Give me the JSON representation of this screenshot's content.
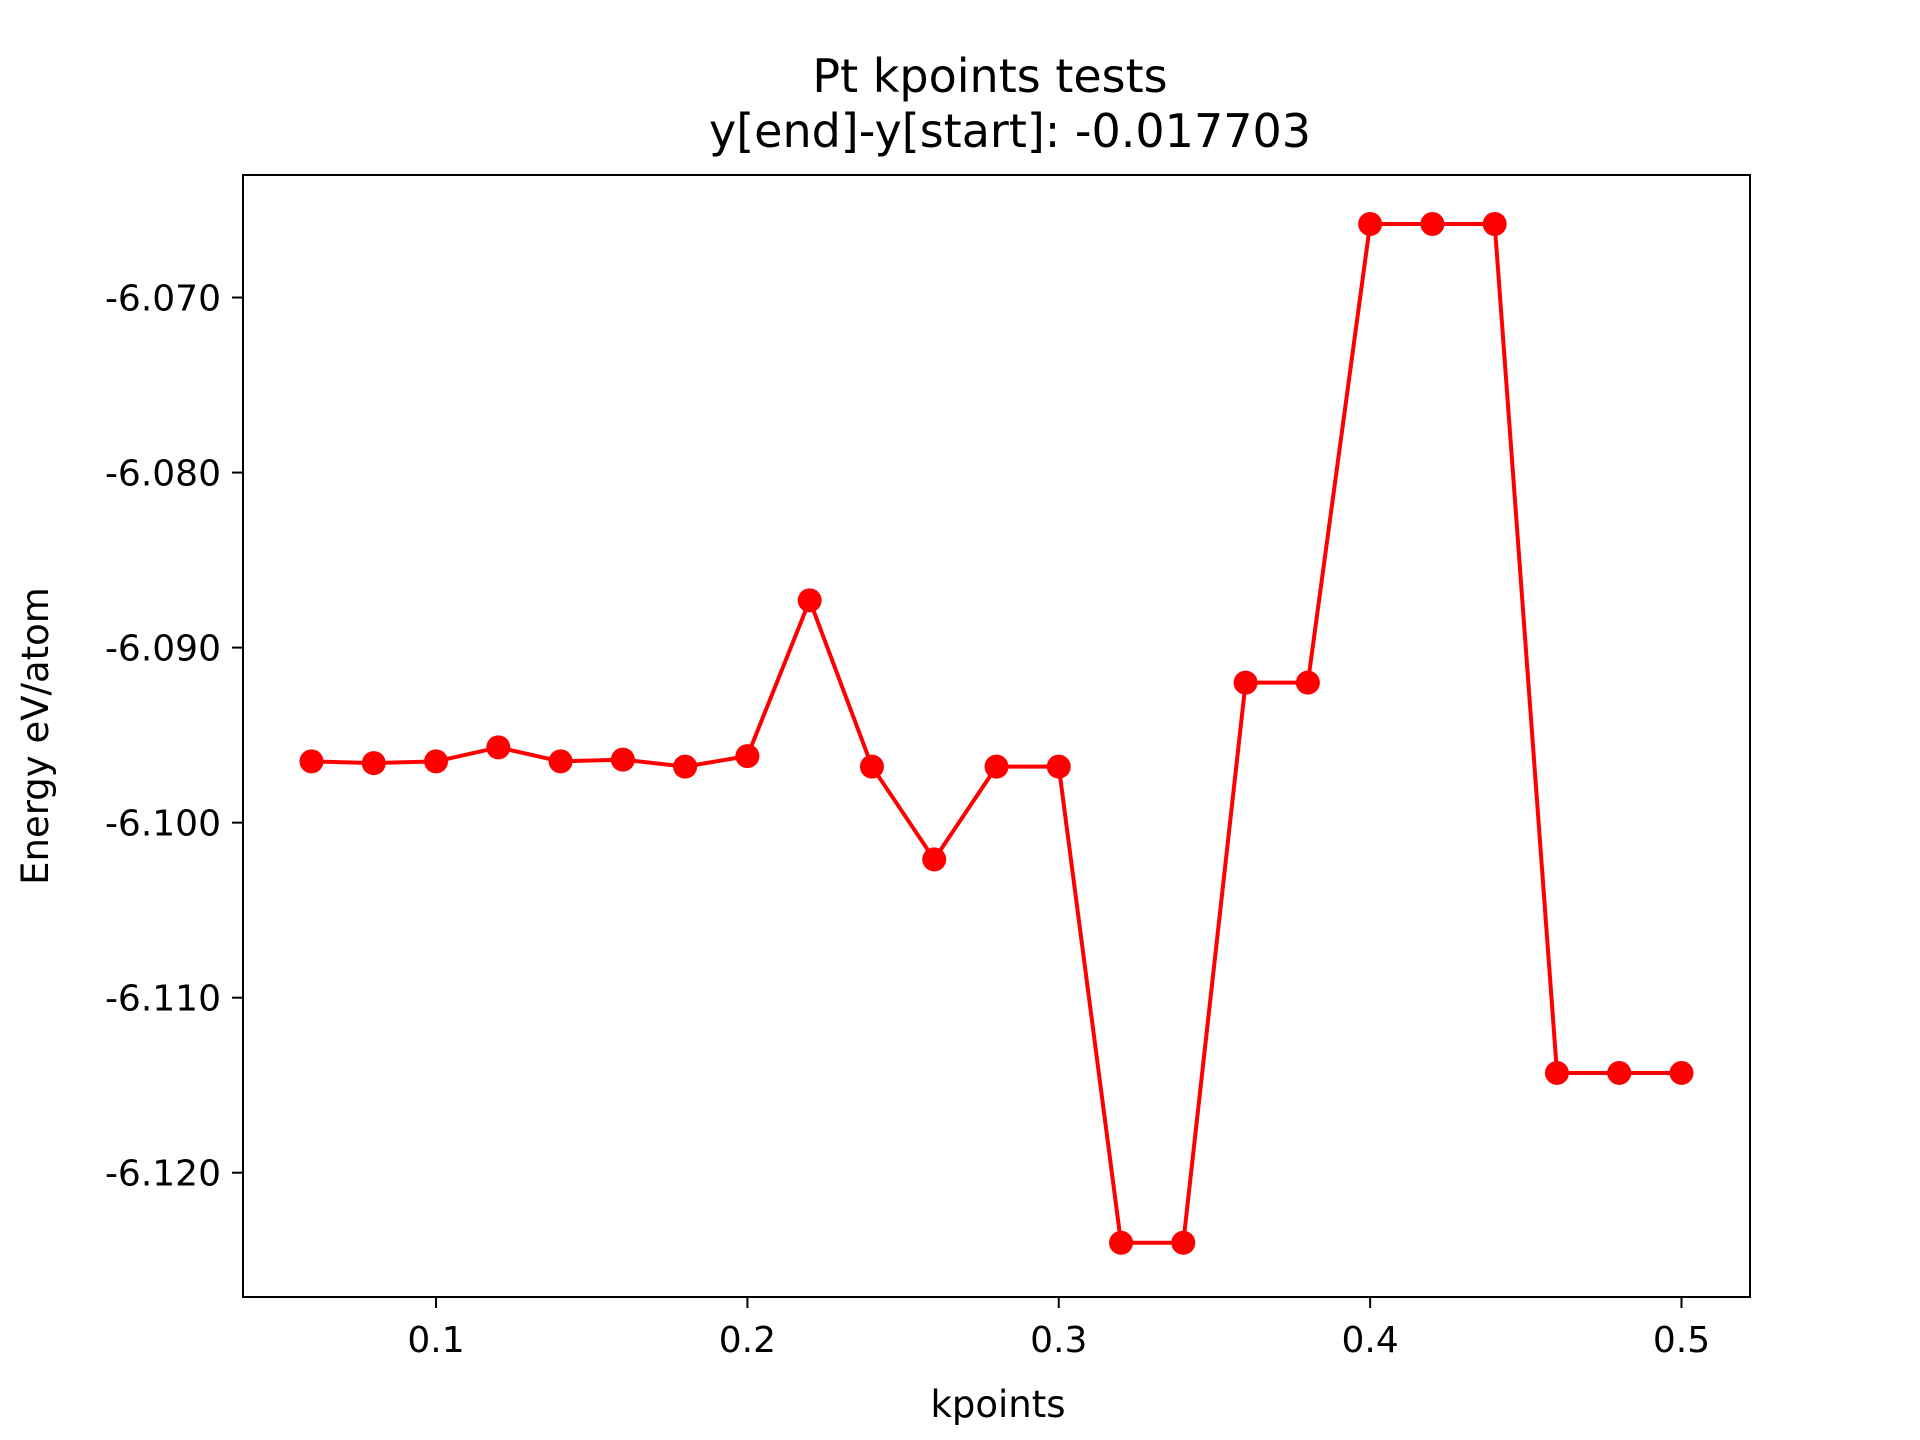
{
  "chart_data": {
    "type": "line",
    "title": "Pt kpoints tests",
    "subtitle": "y[end]-y[start]:  -0.017703",
    "xlabel": "kpoints",
    "ylabel": "Energy eV/atom",
    "xlim": [
      0.038,
      0.522
    ],
    "ylim": [
      -6.1271,
      -6.063
    ],
    "xticks": [
      0.1,
      0.2,
      0.3,
      0.4,
      0.5
    ],
    "xtick_labels": [
      "0.1",
      "0.2",
      "0.3",
      "0.4",
      "0.5"
    ],
    "yticks": [
      -6.07,
      -6.08,
      -6.09,
      -6.1,
      -6.11,
      -6.12
    ],
    "ytick_labels": [
      "-6.070",
      "-6.080",
      "-6.090",
      "-6.100",
      "-6.110",
      "-6.120"
    ],
    "grid": false,
    "series": [
      {
        "color": "#ff0000",
        "marker": "circle",
        "x": [
          0.06,
          0.08,
          0.1,
          0.12,
          0.14,
          0.16,
          0.18,
          0.2,
          0.22,
          0.24,
          0.26,
          0.28,
          0.3,
          0.32,
          0.34,
          0.36,
          0.38,
          0.4,
          0.42,
          0.44,
          0.46,
          0.48,
          0.5
        ],
        "y": [
          -6.0965,
          -6.0966,
          -6.0965,
          -6.0957,
          -6.0965,
          -6.0964,
          -6.0968,
          -6.0962,
          -6.0873,
          -6.0968,
          -6.1021,
          -6.0968,
          -6.0968,
          -6.124,
          -6.124,
          -6.092,
          -6.092,
          -6.0658,
          -6.0658,
          -6.0658,
          -6.1143,
          -6.1143,
          -6.1143
        ]
      }
    ]
  }
}
